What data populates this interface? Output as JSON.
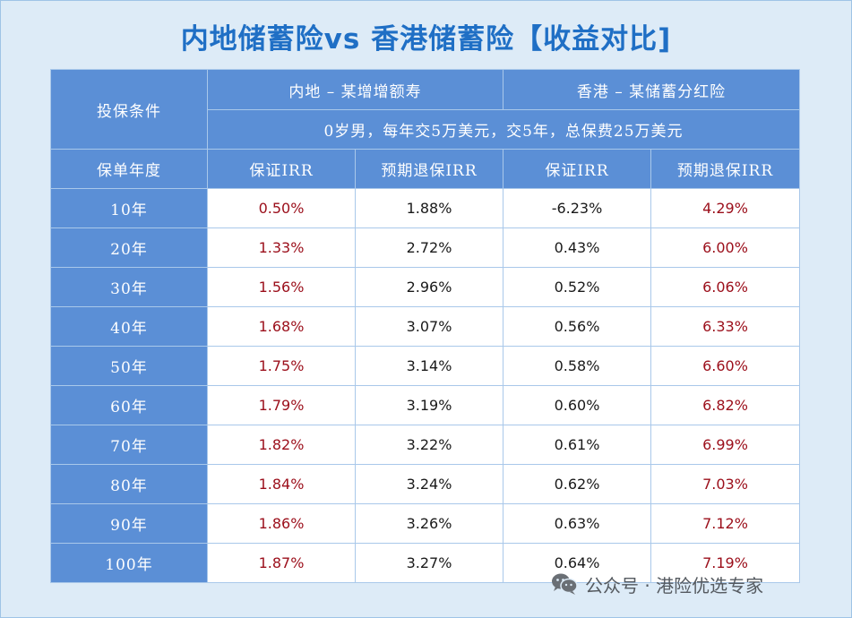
{
  "title": "内地储蓄险vs 香港储蓄险【收益对比]",
  "table": {
    "condition_header": "投保条件",
    "mainland_header": "内地 – 某增增额寿",
    "hk_header": "香港 – 某储蓄分红险",
    "condition_desc": "0岁男，每年交5万美元，交5年，总保费25万美元",
    "year_header": "保单年度",
    "col_headers": [
      "保证IRR",
      "预期退保IRR",
      "保证IRR",
      "预期退保IRR"
    ],
    "rows": [
      {
        "year": "10年",
        "v1": "0.50%",
        "v2": "1.88%",
        "v3": "-6.23%",
        "v4": "4.29%"
      },
      {
        "year": "20年",
        "v1": "1.33%",
        "v2": "2.72%",
        "v3": "0.43%",
        "v4": "6.00%"
      },
      {
        "year": "30年",
        "v1": "1.56%",
        "v2": "2.96%",
        "v3": "0.52%",
        "v4": "6.06%"
      },
      {
        "year": "40年",
        "v1": "1.68%",
        "v2": "3.07%",
        "v3": "0.56%",
        "v4": "6.33%"
      },
      {
        "year": "50年",
        "v1": "1.75%",
        "v2": "3.14%",
        "v3": "0.58%",
        "v4": "6.60%"
      },
      {
        "year": "60年",
        "v1": "1.79%",
        "v2": "3.19%",
        "v3": "0.60%",
        "v4": "6.82%"
      },
      {
        "year": "70年",
        "v1": "1.82%",
        "v2": "3.22%",
        "v3": "0.61%",
        "v4": "6.99%"
      },
      {
        "year": "80年",
        "v1": "1.84%",
        "v2": "3.24%",
        "v3": "0.62%",
        "v4": "7.03%"
      },
      {
        "year": "90年",
        "v1": "1.86%",
        "v2": "3.26%",
        "v3": "0.63%",
        "v4": "7.12%"
      },
      {
        "year": "100年",
        "v1": "1.87%",
        "v2": "3.27%",
        "v3": "0.64%",
        "v4": "7.19%"
      }
    ]
  },
  "watermark": {
    "icon": "wechat-icon",
    "text": "公众号 · 港险优选专家"
  },
  "colors": {
    "title": "#1f6fc5",
    "header_bg": "#5b8fd6",
    "highlight": "#9b0e1a",
    "page_bg": "#ddebf7"
  }
}
